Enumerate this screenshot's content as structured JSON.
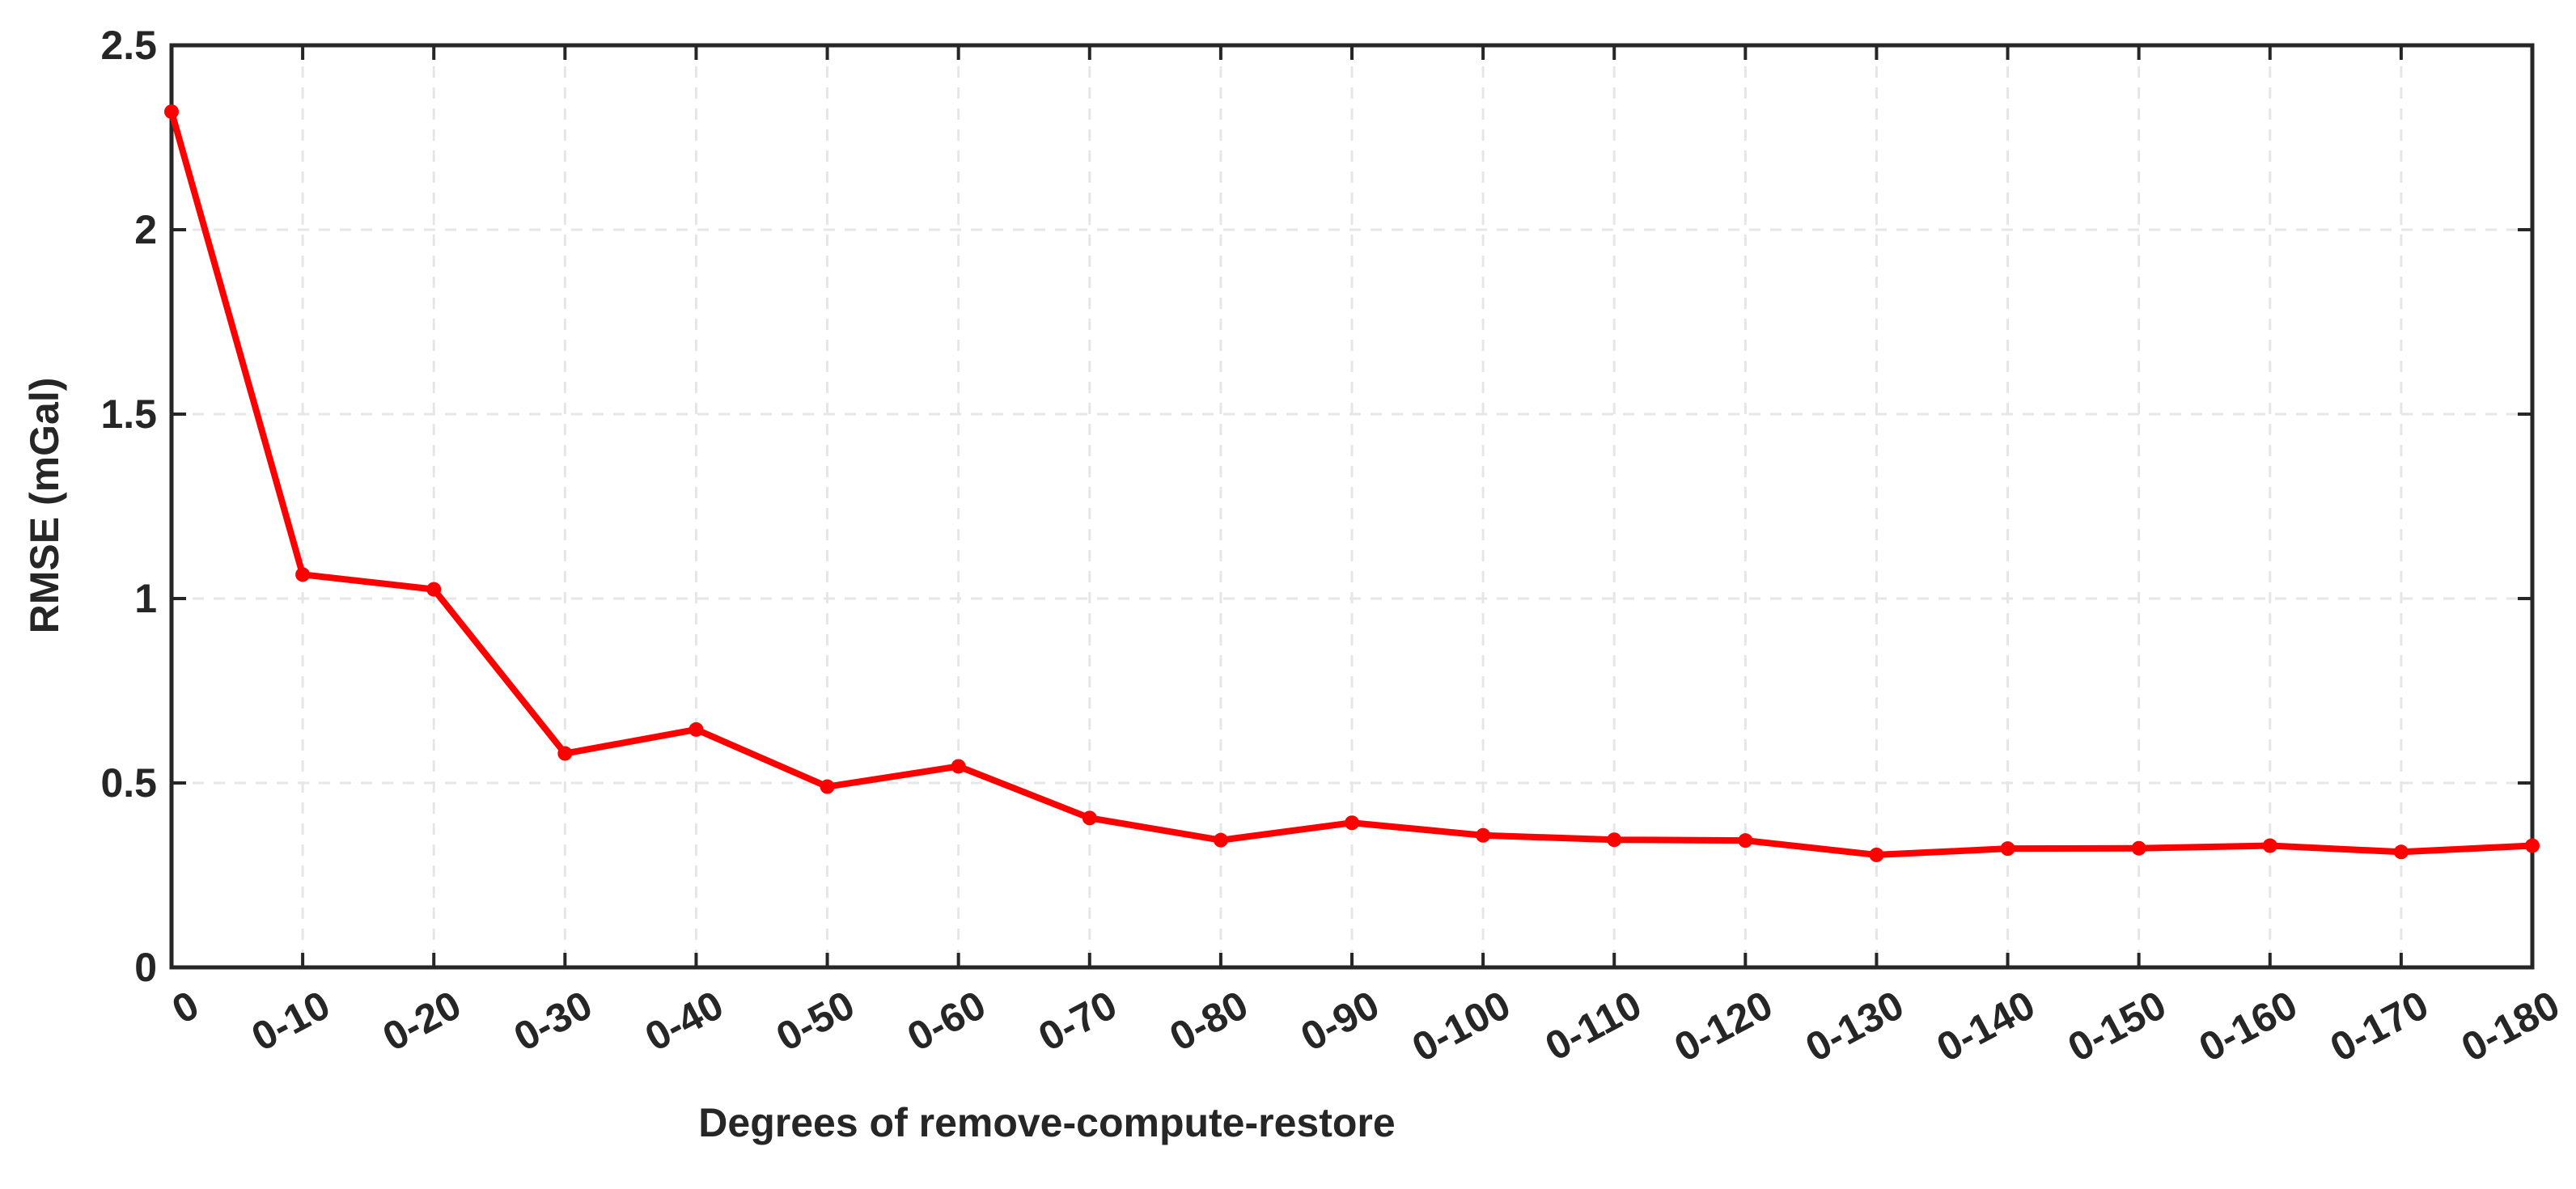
{
  "chart_data": {
    "type": "line",
    "title": "",
    "xlabel": "Degrees of remove-compute-restore",
    "ylabel": "RMSE (mGal)",
    "categories": [
      "0",
      "0-10",
      "0-20",
      "0-30",
      "0-40",
      "0-50",
      "0-60",
      "0-70",
      "0-80",
      "0-90",
      "0-100",
      "0-110",
      "0-120",
      "0-130",
      "0-140",
      "0-150",
      "0-160",
      "0-170",
      "0-180"
    ],
    "series": [
      {
        "values": [
          2.32,
          1.065,
          1.025,
          0.58,
          0.645,
          0.49,
          0.545,
          0.405,
          0.345,
          0.392,
          0.358,
          0.346,
          0.344,
          0.305,
          0.322,
          0.323,
          0.33,
          0.313,
          0.33
        ],
        "color": "#ff0000"
      }
    ],
    "ylim": [
      0,
      2.5
    ],
    "yticks": [
      0,
      0.5,
      1,
      1.5,
      2,
      2.5
    ],
    "ytick_labels": [
      "0",
      "0.5",
      "1",
      "1.5",
      "2",
      "2.5"
    ],
    "grid": true,
    "legend": "none",
    "colors": {
      "axis": "#262626",
      "grid": "#e6e6e6",
      "line": "#ff0000"
    }
  }
}
